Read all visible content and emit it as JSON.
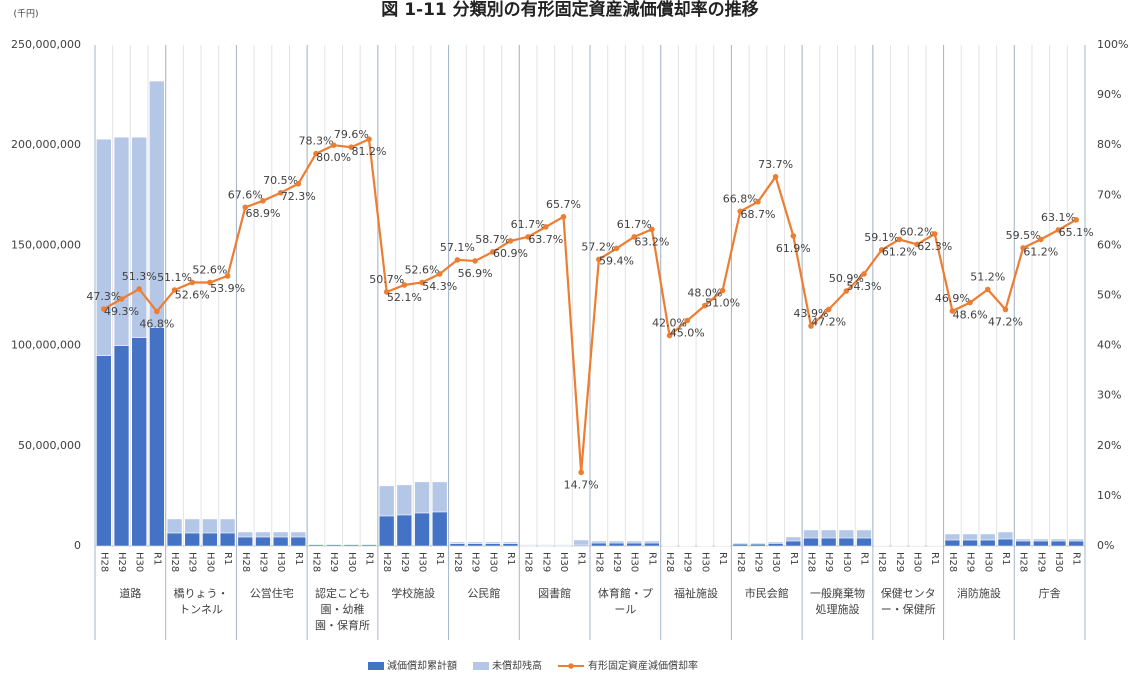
{
  "chart_data": {
    "type": "bar",
    "title": "図 1-11  分類別の有形固定資産減価償却率の推移",
    "y_label": "(千円)",
    "categories": [
      "H28",
      "H29",
      "H30",
      "R1",
      "H28",
      "H29",
      "H30",
      "R1",
      "H28",
      "H29",
      "H30",
      "R1",
      "H28",
      "H29",
      "H30",
      "R1",
      "H28",
      "H29",
      "H30",
      "R1",
      "H28",
      "H29",
      "H30",
      "R1",
      "H28",
      "H29",
      "H30",
      "R1",
      "H28",
      "H29",
      "H30",
      "R1",
      "H28",
      "H29",
      "H30",
      "R1",
      "H28",
      "H29",
      "H30",
      "R1",
      "H28",
      "H29",
      "H30",
      "R1",
      "H28",
      "H29",
      "H30",
      "R1",
      "H28",
      "H29",
      "H30",
      "R1",
      "H28",
      "H29",
      "H30",
      "R1"
    ],
    "groups": [
      "道路",
      "橋りょう・トンネル",
      "公営住宅",
      "認定こども園・幼稚園・保育所",
      "学校施設",
      "公民館",
      "図書館",
      "体育館・プール",
      "福祉施設",
      "市民会館",
      "一般廃棄物処理施設",
      "保健センター・保健所",
      "消防施設",
      "庁舎"
    ],
    "ylim": [
      0,
      250000000
    ],
    "yticks": [
      0,
      {
        "value": 50000000,
        "label": "50,000,000"
      },
      {
        "value": 100000000,
        "label": "100,000,000"
      },
      {
        "value": 150000000,
        "label": "150,000,000"
      },
      {
        "value": 200000000,
        "label": "200,000,000"
      },
      {
        "value": 250000000,
        "label": "250,000,000"
      }
    ],
    "y2lim": [
      0,
      100
    ],
    "y2ticks": [
      {
        "value": 0,
        "label": "0%"
      },
      {
        "value": 10,
        "label": "10%"
      },
      {
        "value": 20,
        "label": "20%"
      },
      {
        "value": 30,
        "label": "30%"
      },
      {
        "value": 40,
        "label": "40%"
      },
      {
        "value": 50,
        "label": "50%"
      },
      {
        "value": 60,
        "label": "60%"
      },
      {
        "value": 70,
        "label": "70%"
      },
      {
        "value": 80,
        "label": "80%"
      },
      {
        "value": 90,
        "label": "90%"
      },
      {
        "value": 100,
        "label": "100%"
      }
    ],
    "stacked": true,
    "series": [
      {
        "name": "減価償却累計額",
        "type": "bar",
        "color": "#4472c4",
        "values": [
          95000000,
          100000000,
          104000000,
          109000000,
          6500000,
          6500000,
          6500000,
          6500000,
          4500000,
          4500000,
          4500000,
          4500000,
          600000,
          600000,
          600000,
          600000,
          15000000,
          15500000,
          16500000,
          17000000,
          1200000,
          1200000,
          1200000,
          1200000,
          300000,
          300000,
          300000,
          500000,
          1500000,
          1500000,
          1500000,
          1500000,
          100000,
          100000,
          100000,
          100000,
          1000000,
          1000000,
          1300000,
          2500000,
          4000000,
          4000000,
          4000000,
          4000000,
          150000,
          150000,
          150000,
          150000,
          3000000,
          3000000,
          3000000,
          3500000,
          2500000,
          2500000,
          2500000,
          2500000
        ]
      },
      {
        "name": "未償却残高",
        "type": "bar",
        "color": "#b4c7e7",
        "values": [
          108000000,
          104000000,
          100000000,
          123000000,
          7000000,
          7000000,
          7000000,
          7000000,
          2500000,
          2500000,
          2500000,
          2500000,
          400000,
          400000,
          400000,
          400000,
          15000000,
          15000000,
          15500000,
          15000000,
          800000,
          800000,
          800000,
          800000,
          400000,
          400000,
          400000,
          2500000,
          1000000,
          1000000,
          1000000,
          1000000,
          100000,
          100000,
          100000,
          100000,
          500000,
          500000,
          700000,
          2000000,
          4000000,
          4000000,
          4000000,
          4000000,
          150000,
          150000,
          150000,
          150000,
          3000000,
          3000000,
          3000000,
          3500000,
          1000000,
          1000000,
          1000000,
          1000000
        ]
      },
      {
        "name": "有形固定資産減価償却率",
        "type": "line",
        "axis": "y2",
        "color": "#ed7d31",
        "values": [
          47.3,
          49.3,
          51.3,
          46.8,
          51.1,
          52.6,
          52.6,
          53.9,
          67.6,
          68.9,
          70.5,
          72.3,
          78.3,
          80.0,
          79.6,
          81.2,
          50.7,
          52.1,
          52.6,
          54.3,
          57.1,
          56.9,
          58.7,
          60.9,
          61.7,
          63.7,
          65.7,
          14.7,
          57.2,
          59.4,
          61.7,
          63.2,
          42.0,
          45.0,
          48.0,
          51.0,
          66.8,
          68.7,
          73.7,
          61.9,
          43.9,
          47.2,
          50.9,
          54.3,
          59.1,
          61.2,
          60.2,
          62.3,
          46.9,
          48.6,
          51.2,
          47.2,
          59.5,
          61.2,
          63.1,
          65.1
        ],
        "value_labels": [
          "47.3%",
          "49.3%",
          "51.3%",
          "46.8%",
          "51.1%",
          "52.6%",
          "52.6%",
          "53.9%",
          "67.6%",
          "68.9%",
          "70.5%",
          "72.3%",
          "78.3%",
          "80.0%",
          "79.6%",
          "81.2%",
          "50.7%",
          "52.1%",
          "52.6%",
          "54.3%",
          "57.1%",
          "56.9%",
          "58.7%",
          "60.9%",
          "61.7%",
          "63.7%",
          "65.7%",
          "14.7%",
          "57.2%",
          "59.4%",
          "61.7%",
          "63.2%",
          "42.0%",
          "45.0%",
          "48.0%",
          "51.0%",
          "66.8%",
          "68.7%",
          "73.7%",
          "61.9%",
          "43.9%",
          "47.2%",
          "50.9%",
          "54.3%",
          "59.1%",
          "61.2%",
          "60.2%",
          "62.3%",
          "46.9%",
          "48.6%",
          "51.2%",
          "47.2%",
          "59.5%",
          "61.2%",
          "63.1%",
          "65.1%"
        ]
      }
    ]
  }
}
